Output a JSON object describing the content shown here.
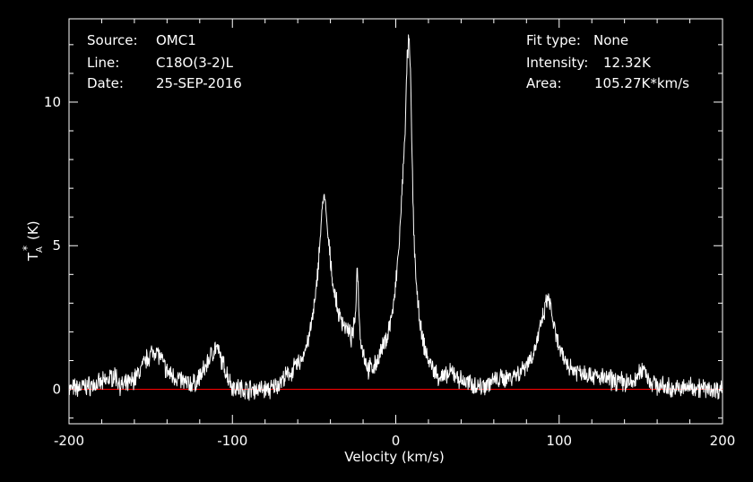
{
  "info": {
    "source_label": "Source:",
    "source_value": "OMC1",
    "line_label": "Line:",
    "line_value": "C18O(3-2)L",
    "date_label": "Date:",
    "date_value": "25-SEP-2016",
    "fit_label": "Fit type:",
    "fit_value": "None",
    "intensity_label": "Intensity:",
    "intensity_value": "12.32K",
    "area_label": "Area:",
    "area_value": "105.27K*km/s"
  },
  "colors": {
    "background": "#000000",
    "axes": "#ffffff",
    "spectrum": "#ffffff",
    "baseline": "#ff0000"
  },
  "chart_data": {
    "type": "line",
    "xlabel": "Velocity (km/s)",
    "ylabel": "T",
    "ylabel_sub": "A",
    "ylabel_sup": "*",
    "ylabel_unit": "(K)",
    "xlim": [
      -200,
      200
    ],
    "ylim": [
      -1.2,
      12.9
    ],
    "x_ticks": [
      -200,
      -100,
      0,
      100,
      200
    ],
    "x_tick_labels": [
      "-200",
      "-100",
      "0",
      "100",
      "200"
    ],
    "y_ticks": [
      0,
      5,
      10
    ],
    "y_tick_labels": [
      "0",
      "5",
      "10"
    ],
    "grid": false,
    "baseline_y": 0,
    "series": [
      {
        "x": [
          -200,
          -190,
          -180,
          -172,
          -168,
          -163,
          -158,
          -152,
          -147,
          -144,
          -140,
          -134,
          -128,
          -123,
          -118,
          -113,
          -110,
          -106,
          -100,
          -92,
          -84,
          -76,
          -70,
          -64,
          -58,
          -53,
          -49,
          -46,
          -44,
          -41,
          -38,
          -35,
          -31,
          -27,
          -25,
          -23.5,
          -22,
          -20,
          -17,
          -13,
          -9,
          -5,
          -1,
          2,
          4,
          6,
          7,
          8,
          9,
          10,
          11,
          13,
          16,
          20,
          25,
          30,
          35,
          40,
          45,
          52,
          60,
          68,
          76,
          84,
          88,
          91,
          93,
          95,
          98,
          102,
          108,
          115,
          125,
          135,
          145,
          150,
          152,
          155,
          162,
          172,
          182,
          192,
          200
        ],
        "y": [
          0,
          0.1,
          0.2,
          0.5,
          0.1,
          0.2,
          0.5,
          1.1,
          1.4,
          1.1,
          0.6,
          0.4,
          0.2,
          0.2,
          0.6,
          1.2,
          1.5,
          0.9,
          0.1,
          0,
          0,
          0,
          0.3,
          0.6,
          1.0,
          1.8,
          3.2,
          5.5,
          6.9,
          5.0,
          3.5,
          2.6,
          2.2,
          1.8,
          2.3,
          4.4,
          2.0,
          1.3,
          0.7,
          0.8,
          1.3,
          1.9,
          3.0,
          5.0,
          7.0,
          9.5,
          11.5,
          12.2,
          11.0,
          8.0,
          5.5,
          3.2,
          1.8,
          1.0,
          0.5,
          0.4,
          0.6,
          0.3,
          0.2,
          0.1,
          0.3,
          0.4,
          0.6,
          1.2,
          2.0,
          2.7,
          3.2,
          2.8,
          1.8,
          1.1,
          0.7,
          0.6,
          0.4,
          0.3,
          0.2,
          0.6,
          0.8,
          0.3,
          0.1,
          0,
          0.1,
          0,
          0
        ]
      }
    ]
  }
}
